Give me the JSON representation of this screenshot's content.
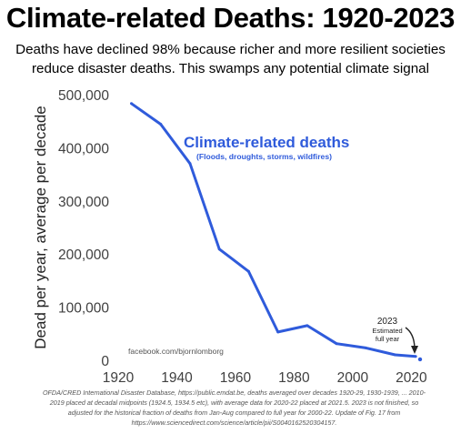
{
  "header": {
    "title": "Climate-related Deaths: 1920-2023",
    "subtitle_line1": "Deaths have declined 98% because richer and more resilient societies",
    "subtitle_line2": "reduce disaster deaths. This swamps any potential climate signal"
  },
  "chart_data": {
    "type": "line",
    "title": "Climate-related Deaths: 1920-2023",
    "xlabel": "",
    "ylabel": "Dead per year, average per decade",
    "xlim": [
      1920,
      2023
    ],
    "ylim": [
      0,
      500000
    ],
    "x_ticks": [
      "1920",
      "1940",
      "1960",
      "1980",
      "2000",
      "2020"
    ],
    "y_ticks": [
      "0",
      "100,000",
      "200,000",
      "300,000",
      "400,000",
      "500,000"
    ],
    "grid": false,
    "series": [
      {
        "name": "Climate-related deaths",
        "subtitle": "(Floods, droughts, storms, wildfires)",
        "color": "#2f5bdb",
        "x": [
          1924.5,
          1934.5,
          1944.5,
          1954.5,
          1964.5,
          1974.5,
          1984.5,
          1994.5,
          2004.5,
          2014.5,
          2021.5
        ],
        "values": [
          485000,
          446000,
          372000,
          211000,
          169000,
          55000,
          67000,
          33000,
          25000,
          12000,
          9000
        ]
      }
    ],
    "point_2023": {
      "x": 2023,
      "value": 3500,
      "color": "#2f5bdb"
    },
    "annotations": {
      "year": "2023",
      "estimated_line1": "Estimated",
      "estimated_line2": "full year",
      "credit": "facebook.com/bjornlomborg"
    }
  },
  "source": {
    "line1": "OFDA/CRED International Disaster Database, https://public.emdat.be, deaths averaged over decades 1920-29, 1930-1939, ... 2010-",
    "line2": "2019 placed at decadal midpoints (1924.5, 1934.5 etc), with average data for 2020-22 placed at 2021.5. 2023 is not finished, so",
    "line3": "adjusted for the historical fraction of deaths from Jan-Aug compared to full year for 2000-22. Update of Fig. 17 from",
    "line4": "https://www.sciencedirect.com/science/article/pii/S0040162520304157."
  }
}
